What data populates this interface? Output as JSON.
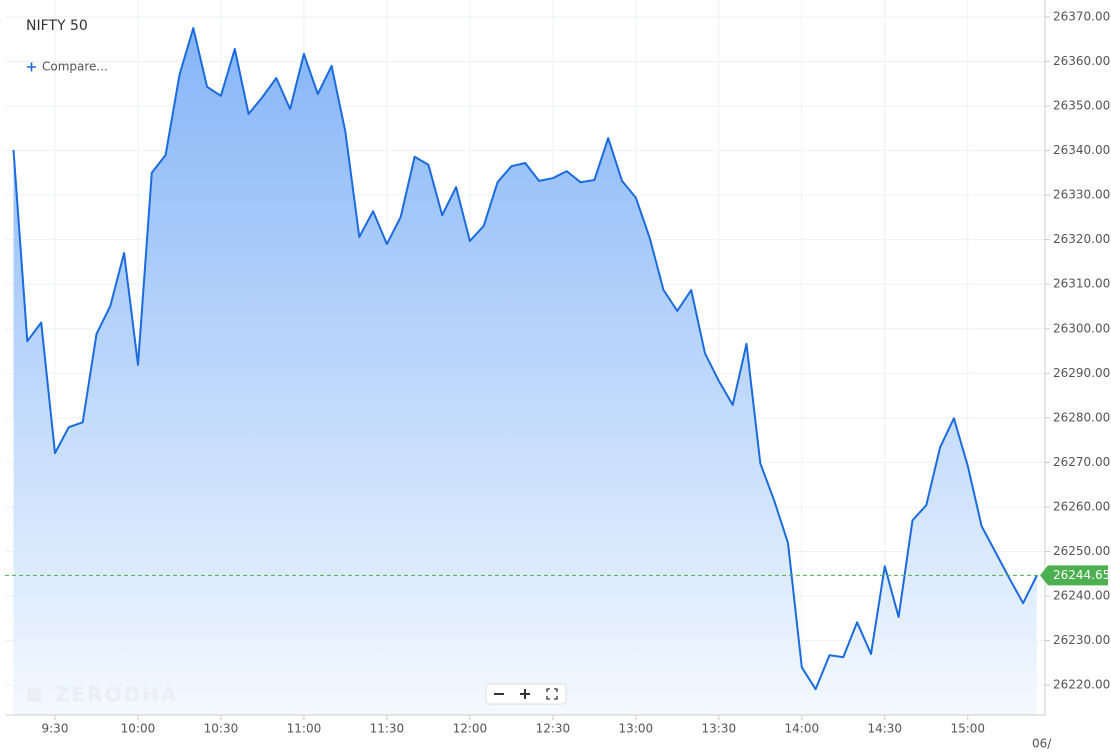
{
  "chart_data": {
    "type": "area",
    "title": "NIFTY 50",
    "compare_button": "Compare...",
    "watermark": "ZERODHA",
    "date_label": "06/",
    "color": "#1a6be0",
    "grid": true,
    "categories": [
      null,
      null,
      null,
      "9:30",
      null,
      null,
      null,
      null,
      null,
      "10:00",
      null,
      null,
      null,
      null,
      null,
      "10:30",
      null,
      null,
      null,
      null,
      null,
      "11:00",
      null,
      null,
      null,
      null,
      null,
      "11:30",
      null,
      null,
      null,
      null,
      null,
      "12:00",
      null,
      null,
      null,
      null,
      null,
      "12:30",
      null,
      null,
      null,
      null,
      null,
      "13:00",
      null,
      null,
      null,
      null,
      null,
      "13:30",
      null,
      null,
      null,
      null,
      null,
      "14:00",
      null,
      null,
      null,
      null,
      null,
      "14:30",
      null,
      null,
      null,
      null,
      null,
      "15:00",
      null,
      null,
      null,
      null,
      null
    ],
    "values": [
      26340.1,
      26297.2,
      26301.4,
      26272.1,
      26277.9,
      26279.0,
      26298.8,
      26305.1,
      26317.0,
      26291.9,
      26335.0,
      26339.0,
      26357.0,
      26367.5,
      26354.3,
      26352.3,
      26362.8,
      26348.2,
      26352.0,
      26356.3,
      26349.3,
      26361.7,
      26352.7,
      26359.0,
      26344.2,
      26320.6,
      26326.4,
      26319.0,
      26325.1,
      26338.6,
      26336.8,
      26325.5,
      26331.8,
      26319.7,
      26323.1,
      26332.9,
      26336.5,
      26337.2,
      26333.2,
      26333.8,
      26335.4,
      26332.9,
      26333.4,
      26342.8,
      26333.2,
      26329.4,
      26320.4,
      26308.7,
      26304.0,
      26308.7,
      26294.5,
      26288.3,
      26282.9,
      26296.6,
      26269.8,
      26261.5,
      26251.9,
      26224.0,
      26219.1,
      26226.7,
      26226.3,
      26234.1,
      26227.0,
      26246.7,
      26235.3,
      26257.0,
      26260.4,
      26273.4,
      26279.9,
      26269.2,
      26255.7,
      26249.9,
      26244.0,
      26238.4,
      26244.65
    ],
    "last_price": 26244.65,
    "last_price_color": "#4caf50",
    "ylim": [
      26213.3,
      26373.8
    ],
    "yticks": [
      {
        "value": 26220,
        "label": "26220.00"
      },
      {
        "value": 26230,
        "label": "26230.00"
      },
      {
        "value": 26240,
        "label": "26240.00"
      },
      {
        "value": 26250,
        "label": "26250.00"
      },
      {
        "value": 26260,
        "label": "26260.00"
      },
      {
        "value": 26270,
        "label": "26270.00"
      },
      {
        "value": 26280,
        "label": "26280.00"
      },
      {
        "value": 26290,
        "label": "26290.00"
      },
      {
        "value": 26300,
        "label": "26300.00"
      },
      {
        "value": 26310,
        "label": "26310.00"
      },
      {
        "value": 26320,
        "label": "26320.00"
      },
      {
        "value": 26330,
        "label": "26330.00"
      },
      {
        "value": 26340,
        "label": "26340.00"
      },
      {
        "value": 26350,
        "label": "26350.00"
      },
      {
        "value": 26360,
        "label": "26360.00"
      },
      {
        "value": 26370,
        "label": "26370.00"
      }
    ]
  }
}
